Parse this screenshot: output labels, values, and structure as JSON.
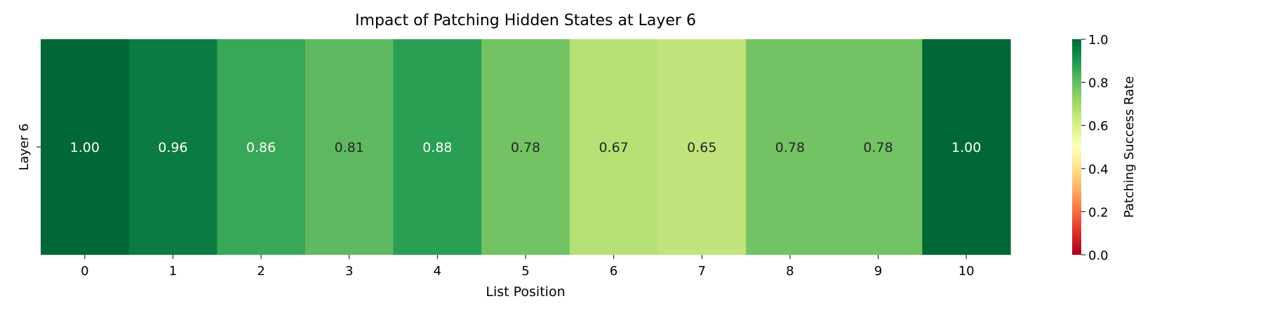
{
  "chart_data": {
    "type": "heatmap",
    "title": "Impact of Patching Hidden States at Layer 6",
    "xlabel": "List Position",
    "ylabel": "",
    "row_labels": [
      "Layer 6"
    ],
    "x_tick_labels": [
      "0",
      "1",
      "2",
      "3",
      "4",
      "5",
      "6",
      "7",
      "8",
      "9",
      "10"
    ],
    "values": [
      [
        1.0,
        0.96,
        0.86,
        0.81,
        0.88,
        0.78,
        0.67,
        0.65,
        0.78,
        0.78,
        1.0
      ]
    ],
    "annotation_labels": [
      "1.00",
      "0.96",
      "0.86",
      "0.81",
      "0.88",
      "0.78",
      "0.67",
      "0.65",
      "0.78",
      "0.78",
      "1.00"
    ],
    "colorbar": {
      "label": "Patching Success Rate",
      "range": [
        0.0,
        1.0
      ],
      "tick_labels": [
        "0.0",
        "0.2",
        "0.4",
        "0.6",
        "0.8",
        "1.0"
      ],
      "colormap": "RdYlGn"
    }
  },
  "colors": {
    "colormap_stops": [
      "#a50026",
      "#d73027",
      "#f46d43",
      "#fdae61",
      "#fee08b",
      "#ffffbf",
      "#d9ef8b",
      "#a6d96a",
      "#66bd63",
      "#1a9850",
      "#006837"
    ],
    "text_light": "#ffffff",
    "text_dark": "#262626",
    "axis": "#000000"
  }
}
